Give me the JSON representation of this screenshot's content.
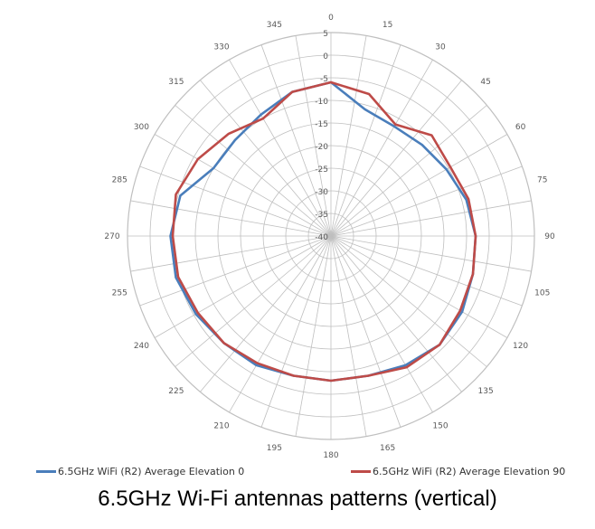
{
  "chart_data": {
    "type": "polar-line",
    "title": "",
    "angle_labels": [
      "0",
      "15",
      "30",
      "45",
      "60",
      "75",
      "90",
      "105",
      "120",
      "135",
      "150",
      "165",
      "180",
      "195",
      "210",
      "225",
      "240",
      "255",
      "270",
      "285",
      "300",
      "315",
      "330",
      "345"
    ],
    "radial_labels": [
      "5",
      "0",
      "-5",
      "-10",
      "-15",
      "-20",
      "-25",
      "-30",
      "-35",
      "-40"
    ],
    "rlim": [
      -40,
      5
    ],
    "grid": true,
    "angle_step_deg": 10,
    "series": [
      {
        "name": "6.5GHz WiFi (R2) Average Elevation 0",
        "color": "#4a7ebb",
        "angles": [
          0,
          15,
          30,
          45,
          60,
          75,
          90,
          105,
          120,
          135,
          150,
          165,
          180,
          195,
          210,
          225,
          240,
          255,
          270,
          285,
          300,
          315,
          330,
          345
        ],
        "values": [
          -6,
          -11,
          -12,
          -11.5,
          -10.5,
          -9,
          -8,
          -7.5,
          -6.5,
          -6,
          -7,
          -8,
          -8,
          -8,
          -7,
          -6.5,
          -5.5,
          -4.5,
          -4.5,
          -5.5,
          -10,
          -10,
          -9,
          -7
        ]
      },
      {
        "name": "6.5GHz WiFi (R2) Average Elevation 90",
        "color": "#be4b48",
        "angles": [
          0,
          15,
          30,
          45,
          60,
          75,
          90,
          105,
          120,
          135,
          150,
          165,
          180,
          195,
          210,
          225,
          240,
          255,
          270,
          285,
          300,
          315,
          330,
          345
        ],
        "values": [
          -6,
          -7.5,
          -11.5,
          -8.5,
          -9.5,
          -8.5,
          -8,
          -7.5,
          -7,
          -6,
          -6.5,
          -8,
          -8,
          -8,
          -7.5,
          -6.5,
          -6,
          -5,
          -5,
          -4.5,
          -6,
          -8,
          -10,
          -7
        ]
      }
    ],
    "legend_position": "bottom",
    "caption": "6.5GHz Wi-Fi antennas patterns (vertical)"
  }
}
